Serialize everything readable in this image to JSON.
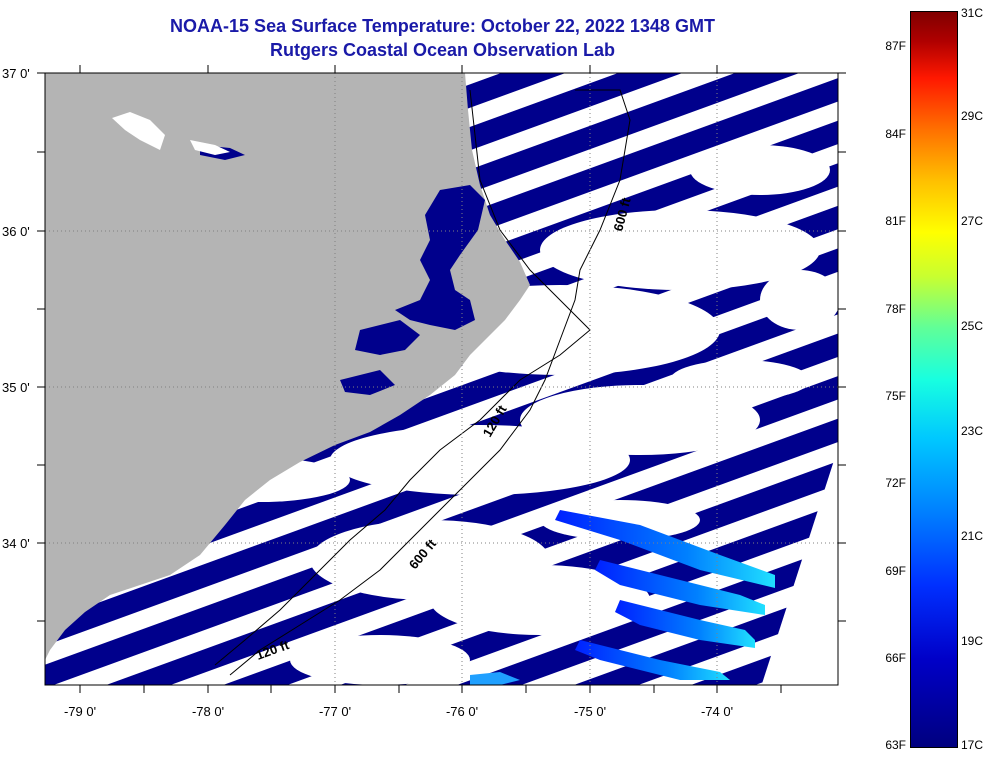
{
  "header": {
    "title": "NOAA-15 Sea Surface Temperature:  October 22, 2022 1348 GMT",
    "subtitle": "Rutgers Coastal Ocean Observation Lab"
  },
  "map": {
    "latitude_labels": [
      "37 0'",
      "36 0'",
      "35 0'",
      "34 0'"
    ],
    "longitude_labels": [
      "-79 0'",
      "-78 0'",
      "-77 0'",
      "-76 0'",
      "-75 0'",
      "-74 0'"
    ],
    "isobath_labels": [
      "120 ft",
      "600 ft",
      "120 ft",
      "600 ft"
    ],
    "colors": {
      "land": "#b4b4b4",
      "water_cold": "#00008c",
      "cloud": "#ffffff"
    }
  },
  "colorbar": {
    "fahrenheit_labels": [
      "87F",
      "84F",
      "81F",
      "78F",
      "75F",
      "72F",
      "69F",
      "66F",
      "63F"
    ],
    "celsius_labels": [
      "31C",
      "29C",
      "27C",
      "25C",
      "23C",
      "21C",
      "19C",
      "17C"
    ]
  }
}
